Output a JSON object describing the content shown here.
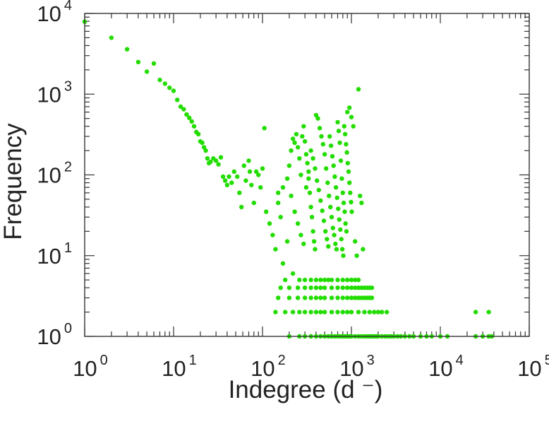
{
  "chart_data": {
    "type": "scatter",
    "xlabel": "Indegree (d ⁻)",
    "ylabel": "Frequency",
    "xscale": "log",
    "yscale": "log",
    "xlim": [
      1,
      100000
    ],
    "ylim": [
      1,
      10000
    ],
    "grid": false,
    "legend": "none",
    "x_tick_labels": [
      {
        "base": "10",
        "exp": "0"
      },
      {
        "base": "10",
        "exp": "1"
      },
      {
        "base": "10",
        "exp": "2"
      },
      {
        "base": "10",
        "exp": "3"
      },
      {
        "base": "10",
        "exp": "4"
      },
      {
        "base": "10",
        "exp": "5"
      }
    ],
    "y_tick_labels": [
      {
        "base": "10",
        "exp": "0"
      },
      {
        "base": "10",
        "exp": "1"
      },
      {
        "base": "10",
        "exp": "2"
      },
      {
        "base": "10",
        "exp": "3"
      },
      {
        "base": "10",
        "exp": "4"
      }
    ],
    "marker_color": "#22dd00",
    "series": [
      {
        "points": [
          [
            1,
            7900
          ],
          [
            2,
            5000
          ],
          [
            3,
            3600
          ],
          [
            4,
            2500
          ],
          [
            5,
            1900
          ],
          [
            6,
            2400
          ],
          [
            7,
            1500
          ],
          [
            8,
            1350
          ],
          [
            9,
            1200
          ],
          [
            10,
            1100
          ],
          [
            11,
            850
          ],
          [
            12,
            700
          ],
          [
            13,
            650
          ],
          [
            14,
            560
          ],
          [
            15,
            510
          ],
          [
            16,
            460
          ],
          [
            17,
            400
          ],
          [
            18,
            340
          ],
          [
            19,
            320
          ],
          [
            20,
            260
          ],
          [
            21,
            250
          ],
          [
            22,
            220
          ],
          [
            23,
            200
          ],
          [
            24,
            160
          ],
          [
            25,
            140
          ],
          [
            26,
            145
          ],
          [
            28,
            160
          ],
          [
            30,
            150
          ],
          [
            32,
            135
          ],
          [
            34,
            165
          ],
          [
            36,
            95
          ],
          [
            38,
            85
          ],
          [
            40,
            75
          ],
          [
            42,
            95
          ],
          [
            45,
            80
          ],
          [
            48,
            110
          ],
          [
            52,
            95
          ],
          [
            55,
            60
          ],
          [
            58,
            40
          ],
          [
            62,
            130
          ],
          [
            65,
            85
          ],
          [
            70,
            150
          ],
          [
            72,
            110
          ],
          [
            75,
            75
          ],
          [
            80,
            45
          ],
          [
            85,
            110
          ],
          [
            90,
            100
          ],
          [
            95,
            70
          ],
          [
            100,
            120
          ],
          [
            105,
            380
          ],
          [
            110,
            35
          ],
          [
            120,
            25
          ],
          [
            130,
            18
          ],
          [
            140,
            12
          ],
          [
            150,
            60
          ],
          [
            160,
            30
          ],
          [
            170,
            8
          ],
          [
            180,
            5
          ],
          [
            190,
            15
          ],
          [
            200,
            130
          ],
          [
            210,
            200
          ],
          [
            220,
            280
          ],
          [
            230,
            250
          ],
          [
            240,
            320
          ],
          [
            250,
            220
          ],
          [
            260,
            160
          ],
          [
            270,
            100
          ],
          [
            280,
            300
          ],
          [
            290,
            400
          ],
          [
            300,
            260
          ],
          [
            310,
            180
          ],
          [
            320,
            140
          ],
          [
            330,
            90
          ],
          [
            340,
            60
          ],
          [
            350,
            40
          ],
          [
            360,
            30
          ],
          [
            370,
            20
          ],
          [
            380,
            15
          ],
          [
            390,
            12
          ],
          [
            400,
            550
          ],
          [
            420,
            500
          ],
          [
            440,
            380
          ],
          [
            460,
            300
          ],
          [
            480,
            240
          ],
          [
            500,
            180
          ],
          [
            520,
            120
          ],
          [
            540,
            80
          ],
          [
            560,
            55
          ],
          [
            580,
            40
          ],
          [
            600,
            30
          ],
          [
            620,
            22
          ],
          [
            640,
            18
          ],
          [
            660,
            14
          ],
          [
            680,
            12
          ],
          [
            700,
            450
          ],
          [
            720,
            350
          ],
          [
            740,
            250
          ],
          [
            760,
            150
          ],
          [
            780,
            90
          ],
          [
            800,
            60
          ],
          [
            820,
            45
          ],
          [
            840,
            35
          ],
          [
            860,
            25
          ],
          [
            880,
            20
          ],
          [
            900,
            600
          ],
          [
            950,
            680
          ],
          [
            1000,
            520
          ],
          [
            1050,
            400
          ],
          [
            1100,
            15
          ],
          [
            1150,
            10
          ],
          [
            1200,
            1150
          ],
          [
            1250,
            55
          ],
          [
            1300,
            45
          ],
          [
            1350,
            12
          ],
          [
            220,
            6
          ],
          [
            260,
            5
          ],
          [
            300,
            5
          ],
          [
            350,
            5
          ],
          [
            400,
            5
          ],
          [
            450,
            5
          ],
          [
            500,
            5
          ],
          [
            550,
            5
          ],
          [
            600,
            5
          ],
          [
            700,
            5
          ],
          [
            800,
            5
          ],
          [
            900,
            5
          ],
          [
            1000,
            5
          ],
          [
            1100,
            5
          ],
          [
            1200,
            5
          ],
          [
            160,
            4
          ],
          [
            200,
            4
          ],
          [
            250,
            4
          ],
          [
            300,
            4
          ],
          [
            350,
            4
          ],
          [
            400,
            4
          ],
          [
            450,
            4
          ],
          [
            500,
            4
          ],
          [
            600,
            4
          ],
          [
            700,
            4
          ],
          [
            800,
            4
          ],
          [
            900,
            4
          ],
          [
            1000,
            4
          ],
          [
            1100,
            4
          ],
          [
            1200,
            4
          ],
          [
            1300,
            4
          ],
          [
            1400,
            4
          ],
          [
            1500,
            4
          ],
          [
            1600,
            4
          ],
          [
            1700,
            4
          ],
          [
            150,
            3
          ],
          [
            200,
            3
          ],
          [
            250,
            3
          ],
          [
            300,
            3
          ],
          [
            350,
            3
          ],
          [
            400,
            3
          ],
          [
            450,
            3
          ],
          [
            500,
            3
          ],
          [
            600,
            3
          ],
          [
            700,
            3
          ],
          [
            800,
            3
          ],
          [
            900,
            3
          ],
          [
            1000,
            3
          ],
          [
            1100,
            3
          ],
          [
            1200,
            3
          ],
          [
            1300,
            3
          ],
          [
            1400,
            3
          ],
          [
            1500,
            3
          ],
          [
            1600,
            3
          ],
          [
            1700,
            3
          ],
          [
            140,
            2
          ],
          [
            180,
            2
          ],
          [
            220,
            2
          ],
          [
            260,
            2
          ],
          [
            300,
            2
          ],
          [
            350,
            2
          ],
          [
            400,
            2
          ],
          [
            450,
            2
          ],
          [
            500,
            2
          ],
          [
            600,
            2
          ],
          [
            700,
            2
          ],
          [
            800,
            2
          ],
          [
            900,
            2
          ],
          [
            1000,
            2
          ],
          [
            1200,
            2
          ],
          [
            1400,
            2
          ],
          [
            1600,
            2
          ],
          [
            1800,
            2
          ],
          [
            2000,
            2
          ],
          [
            2200,
            2
          ],
          [
            2500,
            2
          ],
          [
            25000,
            2
          ],
          [
            35000,
            2
          ],
          [
            200,
            1
          ],
          [
            260,
            1
          ],
          [
            300,
            1
          ],
          [
            350,
            1
          ],
          [
            400,
            1
          ],
          [
            450,
            1
          ],
          [
            500,
            1
          ],
          [
            550,
            1
          ],
          [
            600,
            1
          ],
          [
            650,
            1
          ],
          [
            700,
            1
          ],
          [
            750,
            1
          ],
          [
            800,
            1
          ],
          [
            850,
            1
          ],
          [
            900,
            1
          ],
          [
            950,
            1
          ],
          [
            1000,
            1
          ],
          [
            1100,
            1
          ],
          [
            1200,
            1
          ],
          [
            1300,
            1
          ],
          [
            1400,
            1
          ],
          [
            1500,
            1
          ],
          [
            1600,
            1
          ],
          [
            1700,
            1
          ],
          [
            1800,
            1
          ],
          [
            1900,
            1
          ],
          [
            2000,
            1
          ],
          [
            2200,
            1
          ],
          [
            2400,
            1
          ],
          [
            2600,
            1
          ],
          [
            2800,
            1
          ],
          [
            3000,
            1
          ],
          [
            3300,
            1
          ],
          [
            3600,
            1
          ],
          [
            4000,
            1
          ],
          [
            4500,
            1
          ],
          [
            5000,
            1
          ],
          [
            6000,
            1
          ],
          [
            7000,
            1
          ],
          [
            8000,
            1
          ],
          [
            10000,
            1
          ],
          [
            12000,
            1
          ],
          [
            25000,
            1
          ],
          [
            30000,
            1
          ],
          [
            35000,
            1
          ],
          [
            38000,
            1
          ],
          [
            150,
            45
          ],
          [
            170,
            70
          ],
          [
            190,
            90
          ],
          [
            210,
            55
          ],
          [
            230,
            35
          ],
          [
            250,
            25
          ],
          [
            270,
            18
          ],
          [
            290,
            14
          ],
          [
            310,
            70
          ],
          [
            330,
            110
          ],
          [
            350,
            200
          ],
          [
            370,
            160
          ],
          [
            390,
            120
          ],
          [
            410,
            85
          ],
          [
            430,
            65
          ],
          [
            450,
            48
          ],
          [
            470,
            36
          ],
          [
            490,
            27
          ],
          [
            510,
            20
          ],
          [
            530,
            16
          ],
          [
            550,
            13
          ],
          [
            570,
            300
          ],
          [
            590,
            230
          ],
          [
            610,
            170
          ],
          [
            630,
            130
          ],
          [
            650,
            95
          ],
          [
            670,
            70
          ],
          [
            690,
            52
          ],
          [
            710,
            38
          ],
          [
            730,
            28
          ],
          [
            750,
            21
          ],
          [
            770,
            16
          ],
          [
            790,
            12
          ],
          [
            810,
            10
          ],
          [
            830,
            400
          ],
          [
            850,
            320
          ],
          [
            870,
            240
          ],
          [
            890,
            190
          ],
          [
            910,
            140
          ],
          [
            930,
            110
          ],
          [
            950,
            80
          ],
          [
            970,
            60
          ],
          [
            990,
            46
          ],
          [
            1010,
            35
          ]
        ]
      }
    ]
  }
}
